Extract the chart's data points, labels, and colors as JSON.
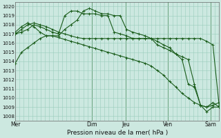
{
  "title": "Pression niveau de la mer( hPa )",
  "bg_color": "#cce8e0",
  "grid_color": "#99ccbb",
  "line_color": "#1a5c1a",
  "ylim": [
    1007.5,
    1020.5
  ],
  "yticks": [
    1008,
    1009,
    1010,
    1011,
    1012,
    1013,
    1014,
    1015,
    1016,
    1017,
    1018,
    1019,
    1020
  ],
  "xtick_labels": [
    "Mer",
    "Dim",
    "Jeu",
    "Ven",
    "Sam"
  ],
  "xtick_positions": [
    0,
    36,
    52,
    72,
    92
  ],
  "vlines": [
    36,
    52,
    72,
    92
  ],
  "xlim": [
    0,
    96
  ],
  "series": [
    [
      1013.8,
      1015.0,
      1015.5,
      1016.0,
      1016.5,
      1016.8,
      1016.8,
      1016.6,
      1016.4,
      1016.2,
      1016.0,
      1015.8,
      1015.6,
      1015.4,
      1015.2,
      1015.0,
      1014.8,
      1014.6,
      1014.4,
      1014.2,
      1014.0,
      1013.8,
      1013.5,
      1013.0,
      1012.5,
      1011.8,
      1011.2,
      1010.5,
      1010.0,
      1009.5,
      1009.2,
      1009.0,
      1009.2,
      1009.5
    ],
    [
      1017.0,
      1017.5,
      1018.0,
      1018.2,
      1018.0,
      1017.8,
      1017.5,
      1017.2,
      1017.0,
      1016.8,
      1016.6,
      1016.5,
      1016.5,
      1016.5,
      1016.5,
      1016.5,
      1016.5,
      1016.5,
      1016.5,
      1016.5,
      1016.5,
      1016.5,
      1016.5,
      1016.5,
      1016.5,
      1016.5,
      1016.5,
      1016.5,
      1016.5,
      1016.5,
      1016.5,
      1016.2,
      1015.8,
      1009.2
    ],
    [
      1017.2,
      1017.8,
      1018.2,
      1017.8,
      1017.2,
      1016.8,
      1016.8,
      1016.8,
      1017.5,
      1018.0,
      1018.5,
      1019.5,
      1019.8,
      1019.5,
      1019.2,
      1019.2,
      1019.0,
      1019.0,
      1017.5,
      1017.2,
      1017.0,
      1016.8,
      1016.5,
      1015.8,
      1015.5,
      1015.2,
      1014.8,
      1014.5,
      1014.2,
      1011.5,
      1009.2,
      1009.0,
      1009.5,
      1009.0
    ],
    [
      1017.0,
      1017.2,
      1017.5,
      1018.0,
      1017.8,
      1017.5,
      1017.2,
      1017.0,
      1019.0,
      1019.5,
      1019.5,
      1019.2,
      1019.2,
      1019.2,
      1019.0,
      1019.0,
      1017.2,
      1017.0,
      1016.8,
      1016.5,
      1016.5,
      1016.5,
      1016.5,
      1016.2,
      1015.8,
      1015.5,
      1014.8,
      1014.2,
      1011.5,
      1011.2,
      1009.2,
      1008.5,
      1009.0,
      1009.0
    ]
  ]
}
